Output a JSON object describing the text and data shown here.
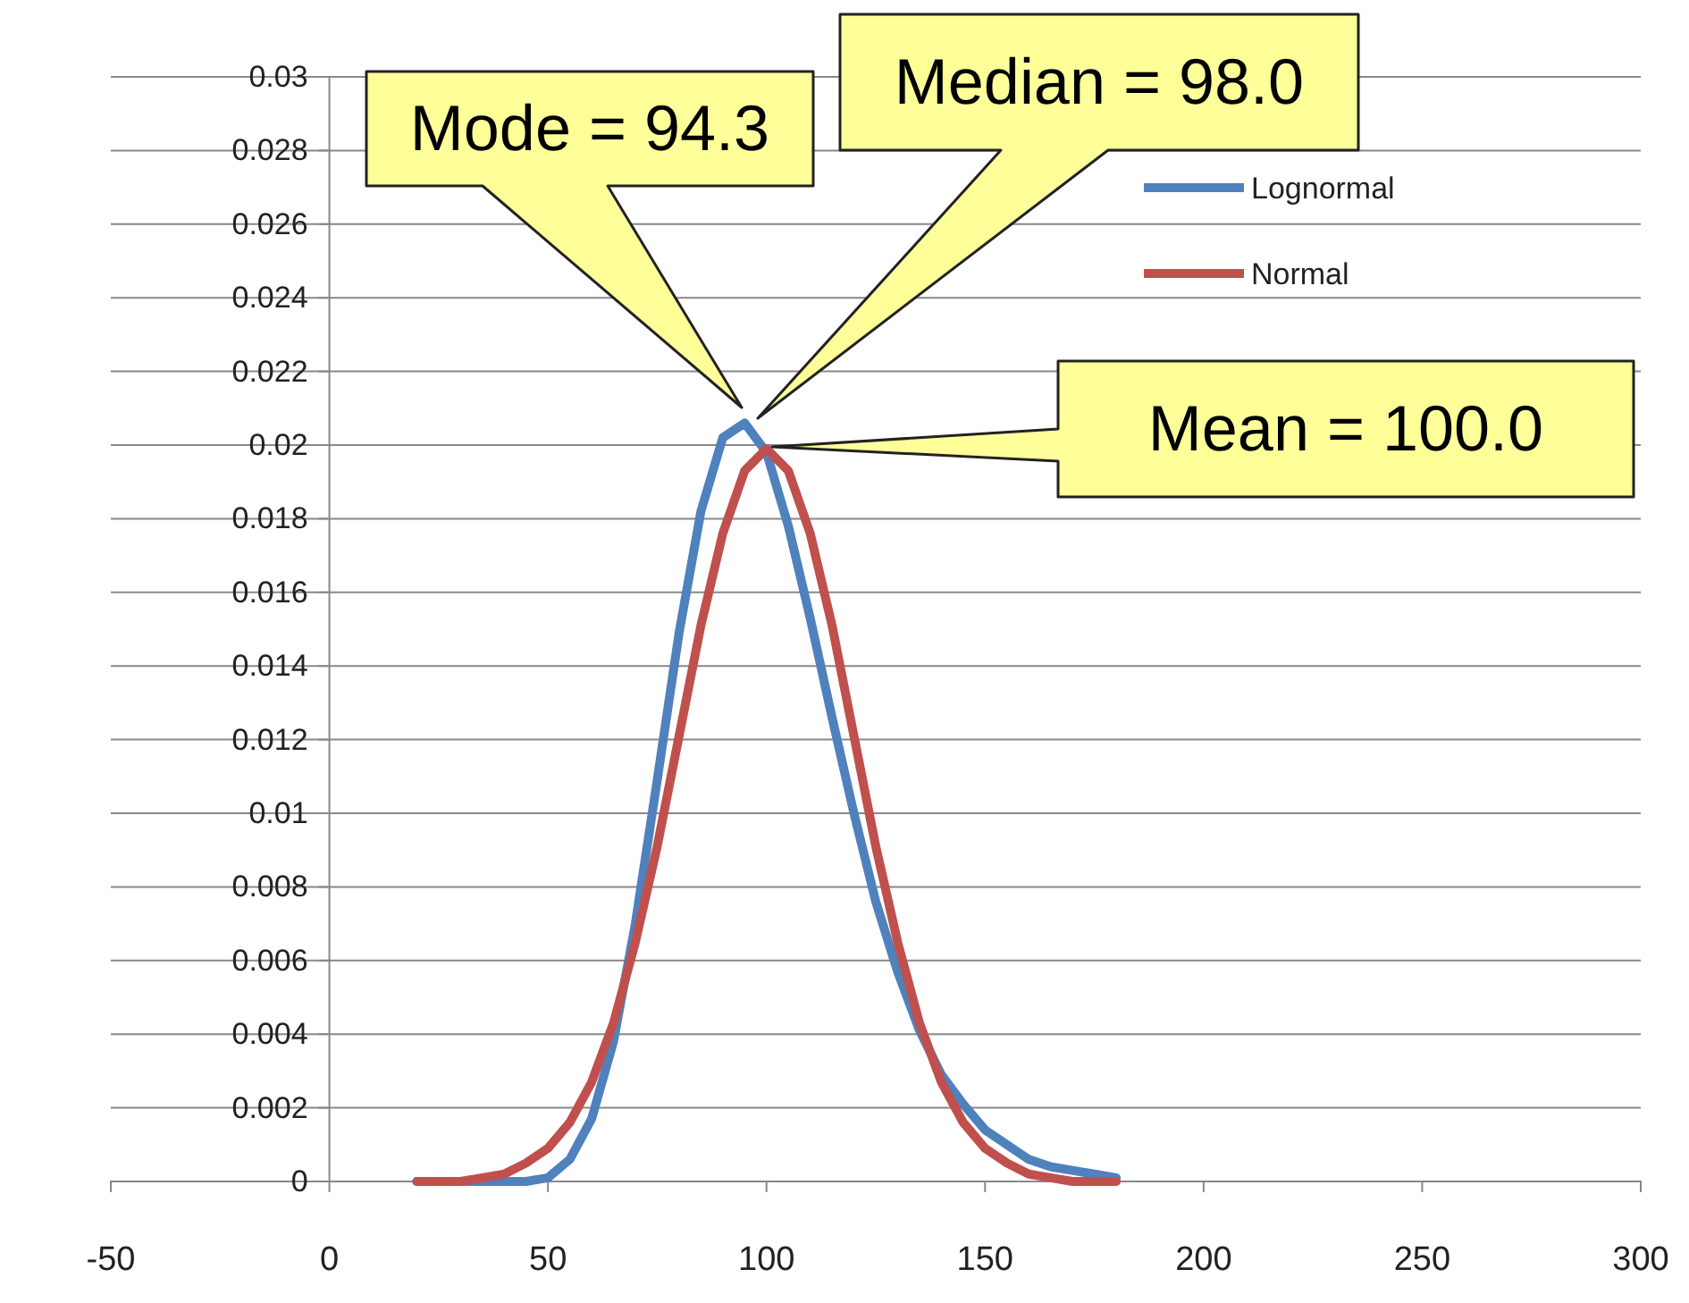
{
  "chart_data": {
    "type": "line",
    "x": [
      20,
      25,
      30,
      35,
      40,
      45,
      50,
      55,
      60,
      65,
      70,
      75,
      80,
      85,
      90,
      95,
      100,
      105,
      110,
      115,
      120,
      125,
      130,
      135,
      140,
      145,
      150,
      155,
      160,
      165,
      170,
      175,
      180
    ],
    "series": [
      {
        "name": "Lognormal",
        "color": "#4f81bd",
        "values": [
          0,
          0,
          0,
          0,
          0,
          0,
          0.0001,
          0.0006,
          0.0017,
          0.0038,
          0.007,
          0.0109,
          0.0149,
          0.0182,
          0.0202,
          0.0206,
          0.0198,
          0.0178,
          0.0153,
          0.0126,
          0.01,
          0.0076,
          0.0057,
          0.0041,
          0.0029,
          0.0021,
          0.0014,
          0.001,
          0.0006,
          0.0004,
          0.0003,
          0.0002,
          0.0001
        ]
      },
      {
        "name": "Normal",
        "color": "#c0504d",
        "values": [
          0,
          0,
          0,
          0.0001,
          0.0002,
          0.0005,
          0.0009,
          0.0016,
          0.0027,
          0.0043,
          0.0065,
          0.0091,
          0.0121,
          0.0151,
          0.0176,
          0.0193,
          0.0199,
          0.0193,
          0.0176,
          0.0151,
          0.0121,
          0.0091,
          0.0065,
          0.0043,
          0.0027,
          0.0016,
          0.0009,
          0.0005,
          0.0002,
          0.0001,
          0,
          0,
          0
        ]
      }
    ],
    "xlim": [
      -50,
      300
    ],
    "xticks": [
      -50,
      0,
      50,
      100,
      150,
      200,
      250,
      300
    ],
    "ylim": [
      0,
      0.03
    ],
    "yticks": [
      0,
      0.002,
      0.004,
      0.006,
      0.008,
      0.01,
      0.012,
      0.014,
      0.016,
      0.018,
      0.02,
      0.022,
      0.024,
      0.026,
      0.028,
      0.03
    ],
    "grid": "y",
    "legend": "top right",
    "marker": "none",
    "line_style": "solid",
    "annotations": [
      "Mode = 94.3",
      "Median = 98.0",
      "Mean = 100.0"
    ]
  }
}
